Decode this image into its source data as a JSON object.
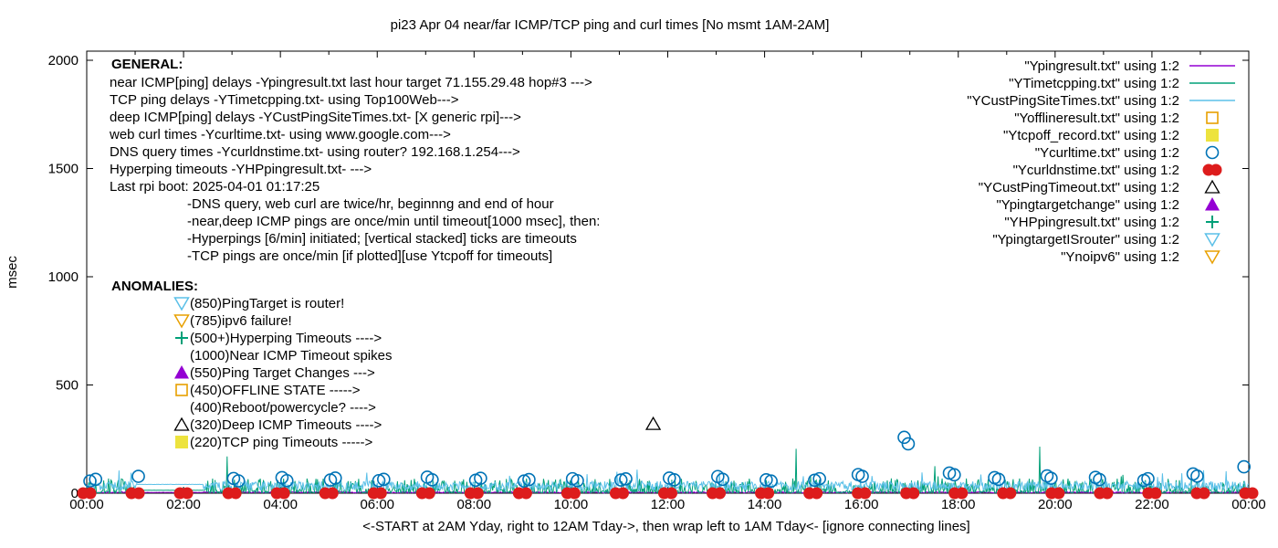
{
  "chart_data": {
    "type": "line+scatter",
    "title": "pi23 Apr 04  near/far ICMP/TCP ping and curl times [No msmt 1AM-2AM]",
    "xlabel": "<-START at 2AM Yday, right to 12AM Tday->, then wrap left to 1AM Tday<- [ignore connecting lines]",
    "ylabel": "msec",
    "ylim": [
      0,
      2050
    ],
    "xlim_hours": [
      0,
      24
    ],
    "y_ticks": [
      0,
      500,
      1000,
      1500,
      2000
    ],
    "x_major_ticks": [
      "00:00",
      "02:00",
      "04:00",
      "06:00",
      "08:00",
      "10:00",
      "12:00",
      "14:00",
      "16:00",
      "18:00",
      "20:00",
      "22:00",
      "00:00"
    ],
    "grid": false,
    "legend_position": "top-right-inside",
    "noise_seed": 42,
    "series": [
      {
        "id": "near_icmp",
        "legend": "\"Ypingresult.txt\" using 1:2",
        "style": "line",
        "color": "#9400d3",
        "band": {
          "min": 1,
          "max": 7
        },
        "flat_segment": {
          "from": 1.05,
          "to": 2.4,
          "value": 3
        },
        "spikes": []
      },
      {
        "id": "tcp_ping",
        "legend": "\"YTimetcpping.txt\" using 1:2",
        "style": "line",
        "color": "#00a078",
        "band": {
          "min": 2,
          "max": 45
        },
        "flat_segment": {
          "from": 1.05,
          "to": 2.4,
          "value": 13
        },
        "spikes": [
          [
            "02:54",
            170
          ],
          [
            "12:05",
            62
          ],
          [
            "14:39",
            205
          ],
          [
            "17:31",
            125
          ],
          [
            "19:41",
            215
          ],
          [
            "21:24",
            85
          ]
        ]
      },
      {
        "id": "deep_icmp",
        "legend": "\"YCustPingSiteTimes.txt\" using 1:2",
        "style": "line",
        "color": "#5bc0e8",
        "band": {
          "min": 12,
          "max": 55
        },
        "flat_segment": {
          "from": 1.05,
          "to": 2.4,
          "value": 40
        },
        "spikes": [
          [
            "05:47",
            95
          ],
          [
            "10:20",
            88
          ],
          [
            "13:04",
            98
          ],
          [
            "18:28",
            86
          ],
          [
            "22:37",
            92
          ]
        ]
      },
      {
        "id": "offline",
        "legend": "\"Yofflineresult.txt\" using 1:2",
        "style": "scatter",
        "marker": "square-open",
        "color": "#e8a000",
        "points": []
      },
      {
        "id": "tcpoff",
        "legend": "\"Ytcpoff_record.txt\" using 1:2",
        "style": "scatter",
        "marker": "square-filled",
        "color": "#ede33e",
        "points": []
      },
      {
        "id": "curl",
        "legend": "\"Ycurltime.txt\" using 1:2",
        "style": "scatter",
        "marker": "circle-open",
        "color": "#0073b6",
        "points": [
          [
            "00:04",
            56
          ],
          [
            "00:11",
            64
          ],
          [
            "01:04",
            78
          ],
          [
            "03:02",
            68
          ],
          [
            "03:08",
            57
          ],
          [
            "04:02",
            72
          ],
          [
            "04:08",
            58
          ],
          [
            "05:02",
            61
          ],
          [
            "05:08",
            70
          ],
          [
            "06:02",
            58
          ],
          [
            "06:08",
            64
          ],
          [
            "07:02",
            74
          ],
          [
            "07:08",
            62
          ],
          [
            "08:02",
            60
          ],
          [
            "08:08",
            69
          ],
          [
            "09:02",
            56
          ],
          [
            "09:08",
            63
          ],
          [
            "10:02",
            67
          ],
          [
            "10:08",
            58
          ],
          [
            "11:02",
            61
          ],
          [
            "11:08",
            66
          ],
          [
            "12:02",
            70
          ],
          [
            "12:08",
            62
          ],
          [
            "13:02",
            77
          ],
          [
            "13:08",
            64
          ],
          [
            "14:02",
            62
          ],
          [
            "14:08",
            56
          ],
          [
            "15:02",
            60
          ],
          [
            "15:08",
            67
          ],
          [
            "15:56",
            86
          ],
          [
            "16:01",
            78
          ],
          [
            "16:53",
            258
          ],
          [
            "16:58",
            228
          ],
          [
            "17:49",
            93
          ],
          [
            "17:55",
            85
          ],
          [
            "18:45",
            72
          ],
          [
            "18:50",
            64
          ],
          [
            "19:50",
            80
          ],
          [
            "19:55",
            69
          ],
          [
            "20:50",
            73
          ],
          [
            "20:55",
            63
          ],
          [
            "21:50",
            59
          ],
          [
            "21:55",
            67
          ],
          [
            "22:51",
            89
          ],
          [
            "22:56",
            79
          ],
          [
            "23:54",
            122
          ]
        ]
      },
      {
        "id": "dns",
        "legend": "\"Ycurldnstime.txt\" using 1:2",
        "style": "scatter",
        "marker": "circle-filled-wide",
        "color": "#dd1c1c",
        "points": [
          [
            "00:00",
            0
          ],
          [
            "01:00",
            0
          ],
          [
            "02:00",
            0
          ],
          [
            "03:00",
            0
          ],
          [
            "04:00",
            0
          ],
          [
            "05:00",
            0
          ],
          [
            "06:00",
            0
          ],
          [
            "07:00",
            0
          ],
          [
            "08:00",
            0
          ],
          [
            "09:00",
            0
          ],
          [
            "10:00",
            0
          ],
          [
            "11:00",
            0
          ],
          [
            "12:00",
            0
          ],
          [
            "13:00",
            0
          ],
          [
            "14:00",
            0
          ],
          [
            "15:00",
            0
          ],
          [
            "16:00",
            0
          ],
          [
            "17:00",
            0
          ],
          [
            "18:00",
            0
          ],
          [
            "19:00",
            0
          ],
          [
            "20:00",
            0
          ],
          [
            "21:00",
            0
          ],
          [
            "22:00",
            0
          ],
          [
            "23:00",
            0
          ],
          [
            "24:00",
            0
          ]
        ]
      },
      {
        "id": "deep_timeout",
        "legend": "\"YCustPingTimeout.txt\" using 1:2",
        "style": "scatter",
        "marker": "triangle-open",
        "color": "#000000",
        "points": [
          [
            "11:42",
            320
          ]
        ]
      },
      {
        "id": "target_change",
        "legend": "\"Ypingtargetchange\" using 1:2",
        "style": "scatter",
        "marker": "triangle-filled",
        "color": "#9400d3",
        "points": []
      },
      {
        "id": "hyperping",
        "legend": "\"YHPpingresult.txt\" using 1:2",
        "style": "scatter",
        "marker": "plus",
        "color": "#00a078",
        "points": []
      },
      {
        "id": "target_is_router",
        "legend": "\"YpingtargetISrouter\" using 1:2",
        "style": "scatter",
        "marker": "triangle-down-open",
        "color": "#5bc0e8",
        "points": []
      },
      {
        "id": "noipv6",
        "legend": "\"Ynoipv6\" using 1:2",
        "style": "scatter",
        "marker": "triangle-down-open",
        "color": "#e8a000",
        "points": []
      }
    ]
  },
  "general_block": {
    "heading": "GENERAL:",
    "lines": [
      "near ICMP[ping] delays -Ypingresult.txt last hour target 71.155.29.48 hop#3 --->",
      "TCP ping delays -YTimetcpping.txt- using Top100Web--->",
      "deep ICMP[ping] delays -YCustPingSiteTimes.txt- [X generic rpi]--->",
      "web curl times -Ycurltime.txt- using www.google.com--->",
      "DNS query times -Ycurldnstime.txt- using router? 192.168.1.254--->",
      "Hyperping timeouts -YHPpingresult.txt- --->",
      "Last rpi boot: 2025-04-01 01:17:25"
    ],
    "notes": [
      "-DNS query, web curl are twice/hr, beginnng and end of hour",
      "-near,deep ICMP pings are once/min until timeout[1000 msec], then:",
      "-Hyperpings [6/min] initiated; [vertical stacked] ticks are timeouts",
      "-TCP pings are once/min [if plotted][use Ytcpoff for timeouts]"
    ]
  },
  "anomalies_block": {
    "heading": "ANOMALIES:",
    "items": [
      {
        "marker": "triangle-down-open",
        "color": "#5bc0e8",
        "text": "(850)PingTarget is router!"
      },
      {
        "marker": "triangle-down-open",
        "color": "#e8a000",
        "text": "(785)ipv6 failure!"
      },
      {
        "marker": "plus",
        "color": "#00a078",
        "text": "(500+)Hyperping Timeouts ---->"
      },
      {
        "marker": "none",
        "color": "",
        "text": "(1000)Near ICMP Timeout spikes"
      },
      {
        "marker": "triangle-filled",
        "color": "#9400d3",
        "text": "(550)Ping Target Changes --->"
      },
      {
        "marker": "square-open",
        "color": "#e8a000",
        "text": "(450)OFFLINE STATE ----->"
      },
      {
        "marker": "none",
        "color": "",
        "text": "(400)Reboot/powercycle? ---->"
      },
      {
        "marker": "triangle-open",
        "color": "#000000",
        "text": "(320)Deep ICMP Timeouts ---->"
      },
      {
        "marker": "square-filled",
        "color": "#ede33e",
        "text": "(220)TCP ping Timeouts ----->"
      }
    ]
  }
}
